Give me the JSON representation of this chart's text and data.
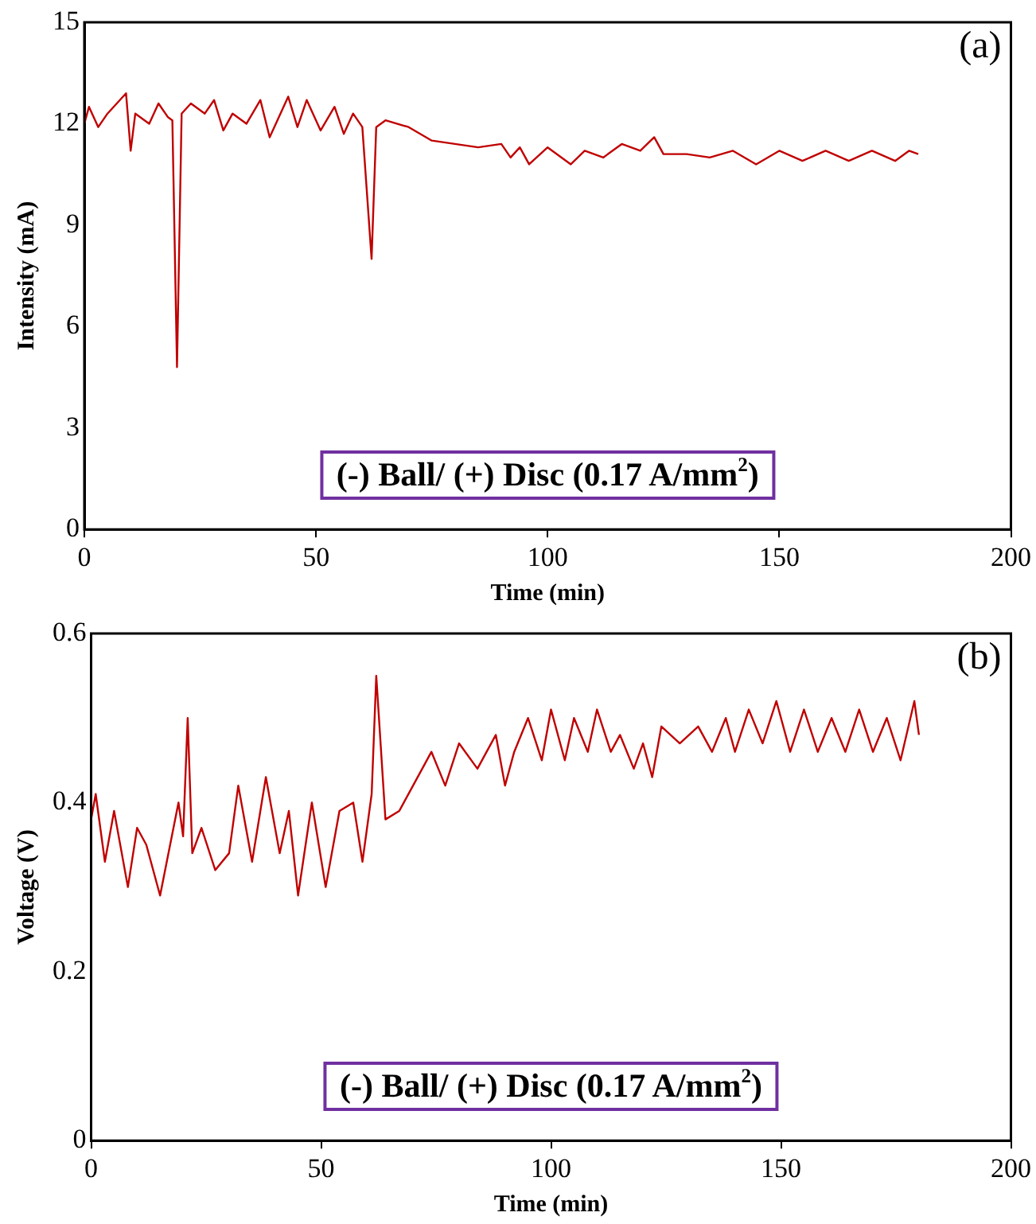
{
  "chart_data": [
    {
      "type": "line",
      "xlabel": "Time (min)",
      "ylabel": "Intensity (mA)",
      "xlim": [
        0,
        200
      ],
      "xticks": [
        0,
        50,
        100,
        150,
        200
      ],
      "ylim": [
        0,
        15
      ],
      "yticks": [
        0,
        3,
        6,
        9,
        12,
        15
      ],
      "marker": "none",
      "line_style": "solid",
      "annotations": [
        "(a)",
        "(-) Ball/ (+) Disc (0.17 A/mm$^{2}$)"
      ],
      "x": [
        0,
        1,
        3,
        5,
        9,
        10,
        11,
        14,
        16,
        18,
        19,
        20,
        21,
        23,
        26,
        28,
        30,
        32,
        35,
        38,
        40,
        44,
        46,
        48,
        51,
        54,
        56,
        58,
        60,
        62,
        63,
        65,
        70,
        75,
        80,
        85,
        90,
        92,
        94,
        96,
        100,
        105,
        108,
        112,
        116,
        120,
        123,
        125,
        130,
        135,
        140,
        145,
        150,
        155,
        160,
        165,
        170,
        175,
        178,
        180
      ],
      "series": [
        {
          "color": "#c00000",
          "values": [
            12.0,
            12.5,
            11.9,
            12.3,
            12.9,
            11.2,
            12.3,
            12.0,
            12.6,
            12.2,
            12.1,
            4.8,
            12.3,
            12.6,
            12.3,
            12.7,
            11.8,
            12.3,
            12.0,
            12.7,
            11.6,
            12.8,
            11.9,
            12.7,
            11.8,
            12.5,
            11.7,
            12.3,
            11.9,
            8.0,
            11.9,
            12.1,
            11.9,
            11.5,
            11.4,
            11.3,
            11.4,
            11.0,
            11.3,
            10.8,
            11.3,
            10.8,
            11.2,
            11.0,
            11.4,
            11.2,
            11.6,
            11.1,
            11.1,
            11.0,
            11.2,
            10.8,
            11.2,
            10.9,
            11.2,
            10.9,
            11.2,
            10.9,
            11.2,
            11.1
          ]
        }
      ]
    },
    {
      "type": "line",
      "xlabel": "Time (min)",
      "ylabel": "Voltage (V)",
      "xlim": [
        0,
        200
      ],
      "xticks": [
        0,
        50,
        100,
        150,
        200
      ],
      "ylim": [
        0,
        0.6
      ],
      "yticks": [
        0,
        0.2,
        0.4,
        0.6
      ],
      "marker": "none",
      "line_style": "solid",
      "annotations": [
        "(b)",
        "(-) Ball/ (+) Disc (0.17 A/mm$^{2}$)"
      ],
      "x": [
        0,
        1,
        3,
        5,
        8,
        10,
        12,
        15,
        19,
        20,
        21,
        22,
        24,
        27,
        30,
        32,
        35,
        38,
        41,
        43,
        45,
        48,
        51,
        54,
        57,
        59,
        61,
        62,
        64,
        67,
        70,
        74,
        77,
        80,
        84,
        88,
        90,
        92,
        95,
        98,
        100,
        103,
        105,
        108,
        110,
        113,
        115,
        118,
        120,
        122,
        124,
        128,
        132,
        135,
        138,
        140,
        143,
        146,
        149,
        152,
        155,
        158,
        161,
        164,
        167,
        170,
        173,
        176,
        179,
        180
      ],
      "series": [
        {
          "color": "#c00000",
          "values": [
            0.38,
            0.41,
            0.33,
            0.39,
            0.3,
            0.37,
            0.35,
            0.29,
            0.4,
            0.36,
            0.5,
            0.34,
            0.37,
            0.32,
            0.34,
            0.42,
            0.33,
            0.43,
            0.34,
            0.39,
            0.29,
            0.4,
            0.3,
            0.39,
            0.4,
            0.33,
            0.41,
            0.55,
            0.38,
            0.39,
            0.42,
            0.46,
            0.42,
            0.47,
            0.44,
            0.48,
            0.42,
            0.46,
            0.5,
            0.45,
            0.51,
            0.45,
            0.5,
            0.46,
            0.51,
            0.46,
            0.48,
            0.44,
            0.47,
            0.43,
            0.49,
            0.47,
            0.49,
            0.46,
            0.5,
            0.46,
            0.51,
            0.47,
            0.52,
            0.46,
            0.51,
            0.46,
            0.5,
            0.46,
            0.51,
            0.46,
            0.5,
            0.45,
            0.52,
            0.48
          ]
        }
      ]
    }
  ]
}
